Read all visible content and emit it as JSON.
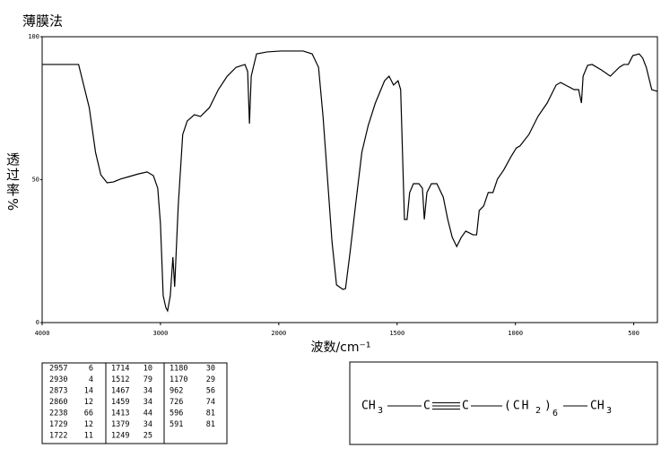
{
  "chart_data": {
    "type": "line",
    "title": "薄膜法",
    "xlabel": "波数/cm⁻¹",
    "ylabel": "透过率%",
    "color": "#000000",
    "x": [
      4000,
      3692,
      3602,
      3549,
      3504,
      3451,
      3398,
      3338,
      3263,
      3188,
      3113,
      3060,
      3023,
      3000,
      2977,
      2955,
      2940,
      2917,
      2895,
      2880,
      2850,
      2812,
      2774,
      2714,
      2662,
      2586,
      2511,
      2436,
      2361,
      2286,
      2263,
      2248,
      2233,
      2188,
      2098,
      1992,
      1897,
      1859,
      1832,
      1813,
      1794,
      1775,
      1756,
      1729,
      1718,
      1698,
      1676,
      1649,
      1622,
      1592,
      1553,
      1534,
      1515,
      1496,
      1485,
      1469,
      1458,
      1447,
      1431,
      1420,
      1408,
      1393,
      1385,
      1374,
      1355,
      1332,
      1305,
      1286,
      1267,
      1248,
      1229,
      1210,
      1179,
      1164,
      1153,
      1134,
      1115,
      1095,
      1076,
      1050,
      1019,
      996,
      981,
      943,
      905,
      866,
      828,
      809,
      782,
      752,
      733,
      721,
      714,
      695,
      676,
      637,
      599,
      561,
      542,
      523,
      504,
      477,
      462,
      447,
      424,
      400
    ],
    "values": [
      90.3,
      90.3,
      75.2,
      59.6,
      51.7,
      48.9,
      49.2,
      50.2,
      51.1,
      52.0,
      52.7,
      51.4,
      47.0,
      34.5,
      9.4,
      5.3,
      4.1,
      9.4,
      22.9,
      12.5,
      40.8,
      65.8,
      70.5,
      72.7,
      72.1,
      75.2,
      81.5,
      86.2,
      89.3,
      90.3,
      87.8,
      69.6,
      86.2,
      94.0,
      94.7,
      95.0,
      95.0,
      94.0,
      89.3,
      72.1,
      50.2,
      28.2,
      13.2,
      11.6,
      11.9,
      25.1,
      40.8,
      59.6,
      69.0,
      76.8,
      84.6,
      86.2,
      83.1,
      84.6,
      81.5,
      36.1,
      36.1,
      45.5,
      48.6,
      48.6,
      48.6,
      47.0,
      36.1,
      45.5,
      48.6,
      48.6,
      43.9,
      36.1,
      29.8,
      26.6,
      29.8,
      32.0,
      30.7,
      30.7,
      39.2,
      40.8,
      45.5,
      45.5,
      50.2,
      53.3,
      58.0,
      61.1,
      61.8,
      65.8,
      72.1,
      76.8,
      83.1,
      84.0,
      82.8,
      81.5,
      81.5,
      76.8,
      86.2,
      90.0,
      90.3,
      88.4,
      86.2,
      89.3,
      90.3,
      90.3,
      93.4,
      94.0,
      92.5,
      89.3,
      81.5,
      80.9
    ],
    "xlim": [
      4000,
      400
    ],
    "ylim": [
      0,
      100
    ],
    "xticks": [
      4000,
      3000,
      2000,
      1500,
      1000,
      500
    ],
    "yticks": [
      0,
      50,
      100
    ]
  },
  "peak_table": [
    [
      [
        2957,
        6
      ],
      [
        2930,
        4
      ],
      [
        2873,
        14
      ],
      [
        2860,
        12
      ],
      [
        2238,
        66
      ],
      [
        1729,
        12
      ],
      [
        1722,
        11
      ]
    ],
    [
      [
        1714,
        10
      ],
      [
        1512,
        79
      ],
      [
        1467,
        34
      ],
      [
        1459,
        34
      ],
      [
        1413,
        44
      ],
      [
        1379,
        34
      ],
      [
        1249,
        25
      ]
    ],
    [
      [
        1180,
        30
      ],
      [
        1170,
        29
      ],
      [
        962,
        56
      ],
      [
        726,
        74
      ],
      [
        596,
        81
      ],
      [
        591,
        81
      ]
    ]
  ],
  "structure": [
    {
      "text": "CH",
      "sub": "3"
    },
    {
      "text": "C"
    },
    {
      "text": "C"
    },
    {
      "text": "(CH",
      "sub": "2"
    },
    {
      "text": ")",
      "sub": "6"
    },
    {
      "text": "CH",
      "sub": "3"
    }
  ]
}
